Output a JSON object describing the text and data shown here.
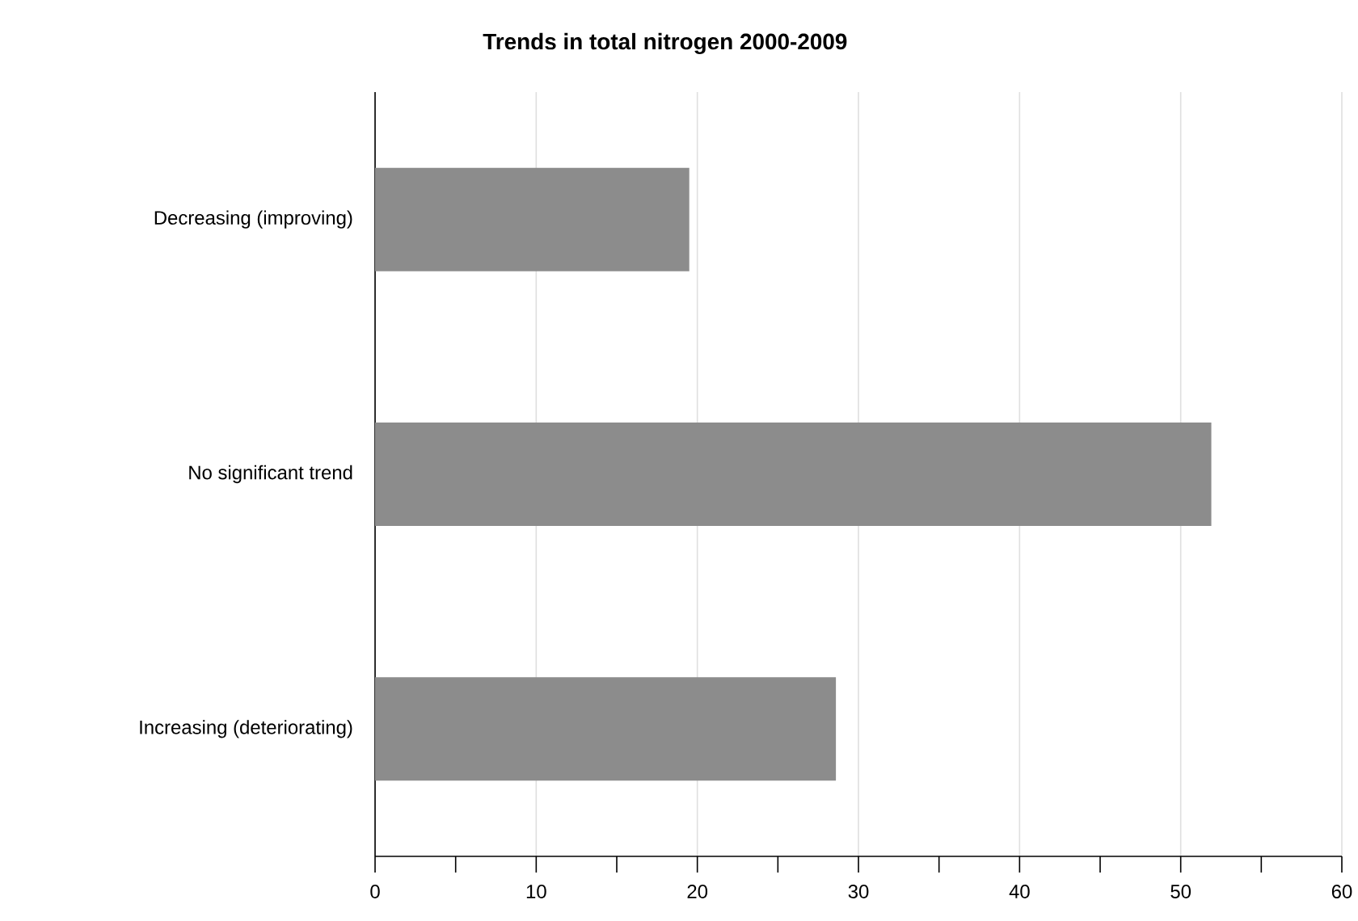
{
  "chart_data": {
    "type": "bar",
    "orientation": "horizontal",
    "title": "Trends in total nitrogen 2000-2009",
    "categories": [
      "Decreasing (improving)",
      "No significant trend",
      "Increasing (deteriorating)"
    ],
    "values": [
      19.5,
      51.9,
      28.6
    ],
    "color": "#8c8c8c",
    "xlim": [
      0,
      60
    ],
    "xticks": [
      0,
      {
        "value": 5,
        "label": null
      },
      10,
      {
        "value": 15,
        "label": null
      },
      20,
      {
        "value": 25,
        "label": null
      },
      30,
      {
        "value": 35,
        "label": null
      },
      40,
      {
        "value": 45,
        "label": null
      },
      50,
      {
        "value": 55,
        "label": null
      },
      60
    ],
    "grid": "x"
  }
}
